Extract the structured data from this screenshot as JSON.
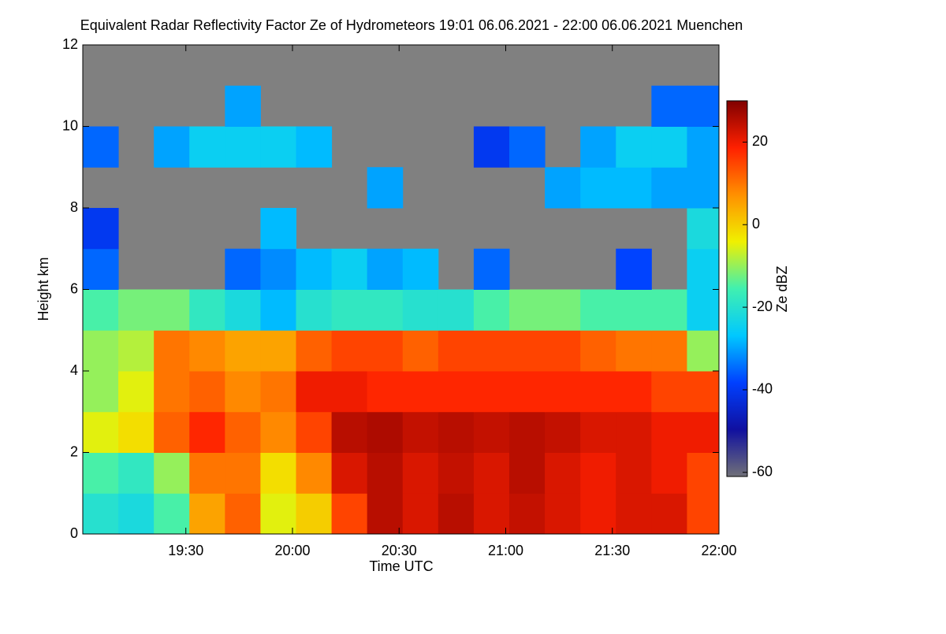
{
  "chart_data": {
    "type": "heatmap",
    "title": "Equivalent Radar Reflectivity Factor Ze of Hydrometeors   19:01 06.06.2021 - 22:00 06.06.2021 Muenchen",
    "x_label": "Time UTC",
    "y_label": "Height km",
    "colorbar_label": "Ze dBZ",
    "xlim": [
      "19:01",
      "22:00"
    ],
    "xticks": [
      "19:30",
      "20:00",
      "20:30",
      "21:00",
      "21:30",
      "22:00"
    ],
    "ylim": [
      0,
      12
    ],
    "yticks": [
      0,
      2,
      4,
      6,
      8,
      10,
      12
    ],
    "zlim": [
      -61,
      30
    ],
    "zticks": [
      -60,
      -40,
      -20,
      0,
      20
    ],
    "colormap": [
      "#707078",
      "#1010a0",
      "#0040ff",
      "#00c8ff",
      "#40f0b0",
      "#f0f000",
      "#ff9000",
      "#ff2000",
      "#800000"
    ],
    "no_data_color": "#808080",
    "x": [
      "19:06",
      "19:16",
      "19:26",
      "19:36",
      "19:46",
      "19:56",
      "20:06",
      "20:16",
      "20:26",
      "20:36",
      "20:46",
      "20:56",
      "21:06",
      "21:16",
      "21:26",
      "21:36",
      "21:46",
      "21:56"
    ],
    "y": [
      0.5,
      1.5,
      2.5,
      3.5,
      4.5,
      5.5,
      6.5,
      7.5,
      8.5,
      9.5,
      10.5,
      11.5
    ],
    "z": [
      [
        -20,
        -22,
        -15,
        5,
        12,
        -5,
        0,
        15,
        25,
        22,
        25,
        22,
        24,
        22,
        20,
        22,
        22,
        15
      ],
      [
        -15,
        -18,
        -10,
        10,
        10,
        -2,
        8,
        22,
        25,
        22,
        24,
        22,
        25,
        22,
        20,
        22,
        20,
        15
      ],
      [
        -5,
        -2,
        12,
        18,
        12,
        8,
        15,
        25,
        26,
        24,
        25,
        24,
        25,
        24,
        22,
        22,
        20,
        20
      ],
      [
        -10,
        -5,
        10,
        12,
        8,
        10,
        20,
        20,
        18,
        18,
        18,
        18,
        18,
        18,
        18,
        18,
        15,
        15
      ],
      [
        -10,
        -8,
        10,
        8,
        5,
        5,
        12,
        15,
        15,
        12,
        15,
        15,
        15,
        15,
        12,
        10,
        10,
        -10
      ],
      [
        -15,
        -12,
        -12,
        -18,
        -22,
        -28,
        -20,
        -18,
        -18,
        -20,
        -20,
        -15,
        -12,
        -12,
        -15,
        -15,
        -15,
        -25
      ],
      [
        -35,
        null,
        null,
        null,
        -35,
        -32,
        -28,
        -25,
        -30,
        -28,
        null,
        -35,
        null,
        null,
        null,
        -38,
        null,
        -25
      ],
      [
        -40,
        null,
        null,
        null,
        null,
        -28,
        null,
        null,
        null,
        null,
        null,
        null,
        null,
        null,
        null,
        null,
        null,
        -22
      ],
      [
        null,
        null,
        null,
        null,
        null,
        null,
        null,
        null,
        -30,
        null,
        null,
        null,
        null,
        -30,
        -28,
        -28,
        -30,
        -30
      ],
      [
        -35,
        null,
        -30,
        -25,
        -25,
        -25,
        -28,
        null,
        null,
        null,
        null,
        -40,
        -35,
        null,
        -30,
        -25,
        -25,
        -30
      ],
      [
        null,
        null,
        null,
        null,
        -30,
        null,
        null,
        null,
        null,
        null,
        null,
        null,
        null,
        null,
        null,
        null,
        -35,
        -35
      ],
      [
        null,
        null,
        null,
        null,
        null,
        null,
        null,
        null,
        null,
        null,
        null,
        null,
        null,
        null,
        null,
        null,
        null,
        null
      ]
    ]
  }
}
